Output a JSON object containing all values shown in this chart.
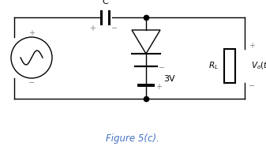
{
  "title": "Figure 5(c).",
  "title_color": "#4472C4",
  "bg_color": "#ffffff",
  "line_color": "#000000",
  "label_color": "#888888",
  "fig_width": 3.37,
  "fig_height": 1.95,
  "dpi": 100
}
